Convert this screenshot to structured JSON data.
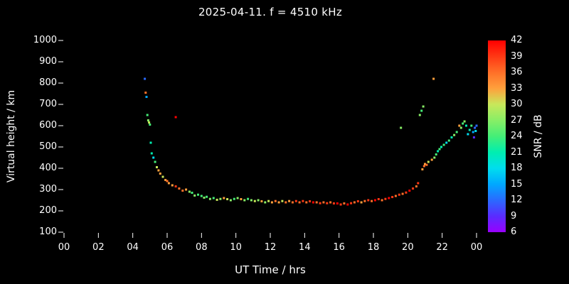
{
  "chart_data": {
    "type": "scatter",
    "title": "2025-04-11. f = 4510 kHz",
    "xlabel": "UT Time / hrs",
    "ylabel": "Virtual height / km",
    "xlim": [
      0,
      24
    ],
    "ylim": [
      100,
      1000
    ],
    "grid": false,
    "background": "#000000",
    "text_color": "#ffffff",
    "x_tick_values": [
      0,
      2,
      4,
      6,
      8,
      10,
      12,
      14,
      16,
      18,
      20,
      22,
      24
    ],
    "x_tick_labels": [
      "00",
      "02",
      "04",
      "06",
      "08",
      "10",
      "12",
      "14",
      "16",
      "18",
      "20",
      "22",
      "00"
    ],
    "y_tick_values": [
      100,
      200,
      300,
      400,
      500,
      600,
      700,
      800,
      900,
      1000
    ],
    "colorbar": {
      "label": "SNR / dB",
      "min": 6,
      "max": 42,
      "tick_values": [
        6,
        9,
        12,
        15,
        18,
        21,
        24,
        27,
        30,
        33,
        36,
        39,
        42
      ],
      "color_stops": [
        [
          6,
          "#9900ff"
        ],
        [
          9,
          "#5a2bff"
        ],
        [
          12,
          "#2a6aff"
        ],
        [
          15,
          "#00a8ff"
        ],
        [
          18,
          "#00ddee"
        ],
        [
          21,
          "#00eeb0"
        ],
        [
          24,
          "#44ee77"
        ],
        [
          27,
          "#88ee66"
        ],
        [
          30,
          "#c8e85a"
        ],
        [
          33,
          "#ffa03c"
        ],
        [
          36,
          "#ff7028"
        ],
        [
          39,
          "#ff3814"
        ],
        [
          42,
          "#ff0000"
        ]
      ]
    },
    "points_format": [
      "ut_hours",
      "virtual_height_km",
      "snr_db"
    ],
    "points": [
      [
        4.7,
        820,
        12
      ],
      [
        4.75,
        755,
        36
      ],
      [
        4.8,
        735,
        15
      ],
      [
        4.85,
        650,
        24
      ],
      [
        4.9,
        625,
        27
      ],
      [
        4.95,
        615,
        30
      ],
      [
        5.0,
        605,
        24
      ],
      [
        5.05,
        520,
        21
      ],
      [
        5.1,
        470,
        21
      ],
      [
        5.2,
        450,
        18
      ],
      [
        5.3,
        430,
        24
      ],
      [
        5.4,
        405,
        30
      ],
      [
        5.5,
        390,
        33
      ],
      [
        5.6,
        375,
        33
      ],
      [
        5.75,
        360,
        30
      ],
      [
        5.9,
        345,
        33
      ],
      [
        6.0,
        340,
        36
      ],
      [
        6.1,
        330,
        33
      ],
      [
        6.3,
        320,
        33
      ],
      [
        6.5,
        640,
        42
      ],
      [
        6.5,
        315,
        39
      ],
      [
        6.7,
        305,
        36
      ],
      [
        6.9,
        295,
        36
      ],
      [
        7.1,
        300,
        33
      ],
      [
        7.3,
        290,
        27
      ],
      [
        7.45,
        285,
        24
      ],
      [
        7.6,
        272,
        27
      ],
      [
        7.8,
        276,
        24
      ],
      [
        8.0,
        270,
        24
      ],
      [
        8.15,
        262,
        27
      ],
      [
        8.3,
        266,
        24
      ],
      [
        8.5,
        256,
        27
      ],
      [
        8.7,
        260,
        24
      ],
      [
        8.9,
        252,
        30
      ],
      [
        9.1,
        256,
        27
      ],
      [
        9.3,
        260,
        33
      ],
      [
        9.5,
        255,
        30
      ],
      [
        9.7,
        250,
        27
      ],
      [
        9.9,
        256,
        24
      ],
      [
        10.1,
        260,
        27
      ],
      [
        10.3,
        255,
        33
      ],
      [
        10.5,
        250,
        27
      ],
      [
        10.7,
        256,
        24
      ],
      [
        10.9,
        250,
        27
      ],
      [
        11.1,
        246,
        30
      ],
      [
        11.3,
        250,
        27
      ],
      [
        11.5,
        245,
        33
      ],
      [
        11.7,
        240,
        27
      ],
      [
        11.9,
        246,
        30
      ],
      [
        12.1,
        240,
        33
      ],
      [
        12.3,
        246,
        36
      ],
      [
        12.5,
        240,
        33
      ],
      [
        12.7,
        246,
        30
      ],
      [
        12.9,
        240,
        36
      ],
      [
        13.1,
        246,
        33
      ],
      [
        13.3,
        240,
        36
      ],
      [
        13.5,
        246,
        39
      ],
      [
        13.7,
        240,
        36
      ],
      [
        13.9,
        246,
        39
      ],
      [
        14.1,
        240,
        36
      ],
      [
        14.3,
        245,
        39
      ],
      [
        14.5,
        240,
        42
      ],
      [
        14.7,
        240,
        36
      ],
      [
        14.9,
        236,
        39
      ],
      [
        15.1,
        240,
        36
      ],
      [
        15.3,
        236,
        39
      ],
      [
        15.5,
        240,
        36
      ],
      [
        15.7,
        235,
        39
      ],
      [
        15.9,
        235,
        42
      ],
      [
        16.1,
        230,
        39
      ],
      [
        16.3,
        235,
        36
      ],
      [
        16.5,
        230,
        42
      ],
      [
        16.7,
        236,
        39
      ],
      [
        16.9,
        240,
        36
      ],
      [
        17.1,
        245,
        39
      ],
      [
        17.3,
        240,
        33
      ],
      [
        17.5,
        246,
        36
      ],
      [
        17.7,
        250,
        39
      ],
      [
        17.9,
        246,
        36
      ],
      [
        18.1,
        250,
        42
      ],
      [
        18.3,
        255,
        39
      ],
      [
        18.5,
        250,
        36
      ],
      [
        18.7,
        256,
        39
      ],
      [
        18.9,
        260,
        42
      ],
      [
        19.1,
        265,
        39
      ],
      [
        19.3,
        270,
        36
      ],
      [
        19.5,
        276,
        39
      ],
      [
        19.6,
        590,
        27
      ],
      [
        19.7,
        280,
        36
      ],
      [
        19.9,
        286,
        39
      ],
      [
        20.1,
        295,
        42
      ],
      [
        20.3,
        305,
        39
      ],
      [
        20.5,
        315,
        36
      ],
      [
        20.6,
        330,
        39
      ],
      [
        20.7,
        650,
        27
      ],
      [
        20.8,
        670,
        24
      ],
      [
        20.85,
        395,
        33
      ],
      [
        20.9,
        690,
        27
      ],
      [
        20.95,
        410,
        36
      ],
      [
        21.0,
        420,
        33
      ],
      [
        21.1,
        416,
        36
      ],
      [
        21.2,
        430,
        30
      ],
      [
        21.4,
        440,
        33
      ],
      [
        21.5,
        820,
        33
      ],
      [
        21.55,
        450,
        27
      ],
      [
        21.65,
        465,
        24
      ],
      [
        21.75,
        480,
        21
      ],
      [
        21.85,
        490,
        24
      ],
      [
        21.95,
        500,
        21
      ],
      [
        22.1,
        510,
        24
      ],
      [
        22.25,
        520,
        18
      ],
      [
        22.4,
        530,
        24
      ],
      [
        22.55,
        545,
        21
      ],
      [
        22.7,
        556,
        27
      ],
      [
        22.85,
        570,
        24
      ],
      [
        23.0,
        600,
        33
      ],
      [
        23.1,
        590,
        27
      ],
      [
        23.2,
        610,
        24
      ],
      [
        23.3,
        620,
        27
      ],
      [
        23.4,
        600,
        21
      ],
      [
        23.5,
        560,
        18
      ],
      [
        23.6,
        580,
        21
      ],
      [
        23.7,
        600,
        24
      ],
      [
        23.8,
        570,
        15
      ],
      [
        23.85,
        545,
        9
      ],
      [
        23.9,
        590,
        12
      ],
      [
        23.95,
        575,
        18
      ],
      [
        24.0,
        600,
        12
      ]
    ]
  }
}
